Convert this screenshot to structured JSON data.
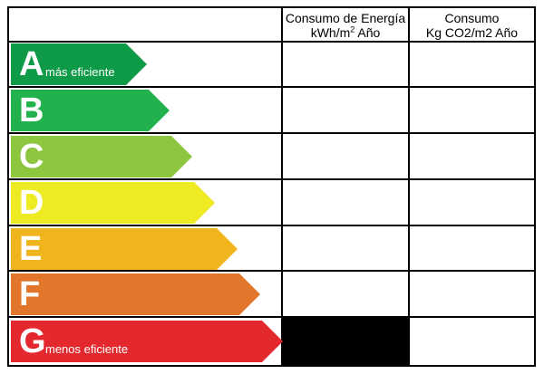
{
  "table": {
    "header_energy_line1": "Consumo de Energía",
    "header_energy_line2_pre": "kWh/m",
    "header_energy_sup": "2",
    "header_energy_line2_post": " Año",
    "header_co2_line1": "Consumo",
    "header_co2_line2": "Kg CO2/m2 Año"
  },
  "ratings": [
    {
      "letter": "A",
      "label": "más eficiente",
      "color": "#0f9a48"
    },
    {
      "letter": "B",
      "label": "",
      "color": "#22b14c"
    },
    {
      "letter": "C",
      "label": "",
      "color": "#8dc63f"
    },
    {
      "letter": "D",
      "label": "",
      "color": "#eeea23"
    },
    {
      "letter": "E",
      "label": "",
      "color": "#f0b41c"
    },
    {
      "letter": "F",
      "label": "",
      "color": "#e2762a"
    },
    {
      "letter": "G",
      "label": "menos eficiente",
      "color": "#e3292e"
    }
  ],
  "colors": {
    "border": "#000000",
    "selected_cell": "#000000"
  }
}
